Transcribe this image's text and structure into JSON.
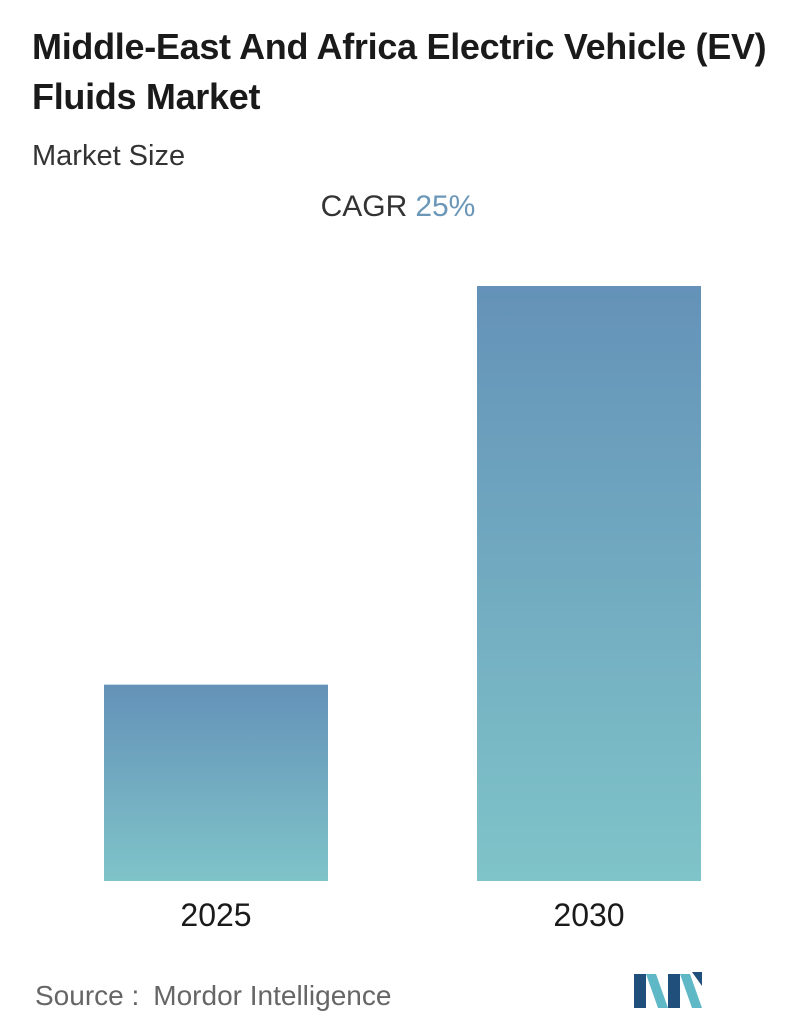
{
  "title": "Middle-East And Africa Electric Vehicle (EV) Fluids Market",
  "subtitle": "Market Size",
  "cagr": {
    "label": "CAGR",
    "value": "25%"
  },
  "chart_data": {
    "type": "bar",
    "title": "Middle-East And Africa Electric Vehicle (EV) Fluids Market",
    "subtitle": "Market Size",
    "categories": [
      "2025",
      "2030"
    ],
    "values": [
      33,
      100
    ],
    "value_note": "relative bar heights (2030 = 100); no values printed",
    "ylim": [
      0,
      100
    ],
    "xlabel": "",
    "ylabel": "",
    "grid": false,
    "legend": "none",
    "annotation": "CAGR 25%",
    "colors": {
      "bar_top": "#6492b8",
      "bar_bottom": "#7fc4c9"
    }
  },
  "source": {
    "label": "Source :",
    "name": "Mordor Intelligence"
  },
  "logo": {
    "icon": "mordor-intelligence-logo-icon",
    "colors": [
      "#1f4f7a",
      "#5fb8c6"
    ]
  }
}
